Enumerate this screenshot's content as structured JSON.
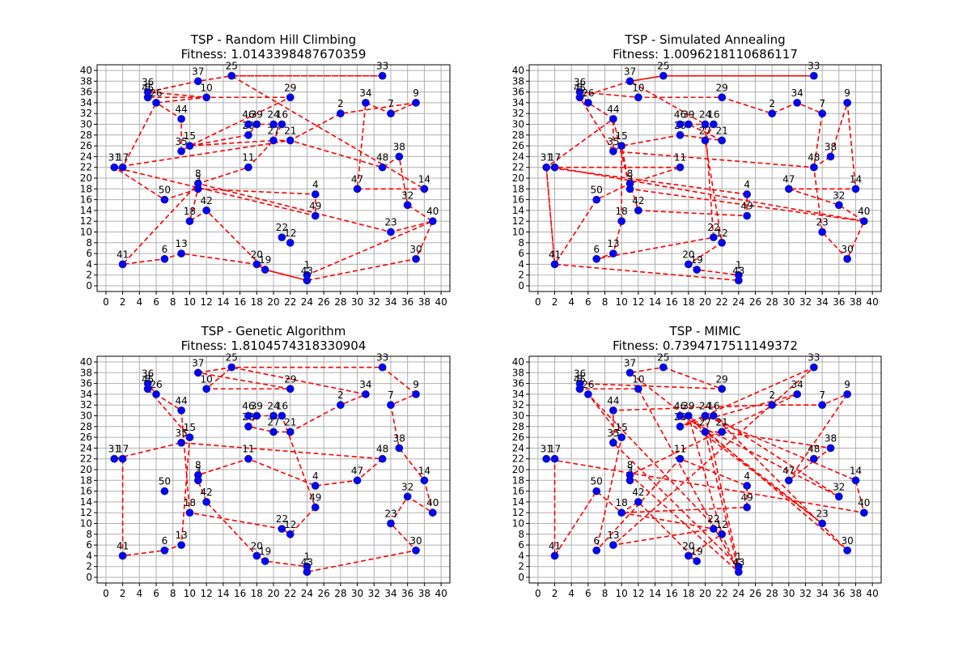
{
  "figure": {
    "colors": {
      "route": "#ff0000",
      "point_fill": "#0000ff",
      "point_edge": "#1f2a7a",
      "grid": "#b0b0b0",
      "axes": "#000000"
    }
  },
  "chart_data": [
    {
      "type": "scatter",
      "title": "TSP - Random Hill Climbing",
      "subtitle": "Fitness: 1.0143398487670359",
      "xlim": [
        0,
        40
      ],
      "ylim": [
        0,
        40
      ],
      "xticks": [
        0,
        2,
        4,
        6,
        8,
        10,
        12,
        14,
        16,
        18,
        20,
        22,
        24,
        26,
        28,
        30,
        32,
        34,
        36,
        38,
        40
      ],
      "yticks": [
        0,
        2,
        4,
        6,
        8,
        10,
        12,
        14,
        16,
        18,
        20,
        22,
        24,
        26,
        28,
        30,
        32,
        34,
        36,
        38,
        40
      ],
      "grid": true,
      "route": [
        33,
        25,
        37,
        36,
        26,
        44,
        35,
        15,
        28,
        39,
        46,
        24,
        16,
        27,
        21,
        48,
        38,
        32,
        40,
        23,
        8,
        3,
        50,
        31,
        17,
        26,
        10,
        36,
        45,
        29,
        15,
        27,
        11,
        8,
        41,
        6,
        13,
        20,
        19,
        43,
        1,
        40,
        30,
        43,
        19,
        42,
        18,
        3,
        4,
        49,
        31,
        21,
        2,
        9,
        7,
        34,
        47,
        14,
        25,
        33
      ]
    },
    {
      "type": "scatter",
      "title": "TSP - Simulated Annealing",
      "subtitle": "Fitness: 1.0096218110686117",
      "xlim": [
        0,
        40
      ],
      "ylim": [
        0,
        40
      ],
      "xticks": [
        0,
        2,
        4,
        6,
        8,
        10,
        12,
        14,
        16,
        18,
        20,
        22,
        24,
        26,
        28,
        30,
        32,
        34,
        36,
        38,
        40
      ],
      "yticks": [
        0,
        2,
        4,
        6,
        8,
        10,
        12,
        14,
        16,
        18,
        20,
        22,
        24,
        26,
        28,
        30,
        32,
        34,
        36,
        38,
        40
      ],
      "grid": true,
      "route": [
        33,
        25,
        37,
        45,
        36,
        10,
        29,
        2,
        34,
        7,
        48,
        38,
        9,
        14,
        47,
        32,
        40,
        30,
        23,
        48,
        35,
        15,
        28,
        21,
        39,
        46,
        16,
        27,
        12,
        20,
        19,
        1,
        43,
        41,
        31,
        17,
        11,
        8,
        3,
        44,
        35,
        5,
        36,
        26,
        44,
        31,
        4,
        49,
        42,
        8,
        50,
        41,
        31,
        17,
        40,
        3,
        15,
        18,
        13,
        6,
        22,
        24,
        37,
        25,
        33
      ]
    },
    {
      "type": "scatter",
      "title": "TSP - Genetic Algorithm",
      "subtitle": "Fitness: 1.8104574318330904",
      "xlim": [
        0,
        40
      ],
      "ylim": [
        0,
        40
      ],
      "xticks": [
        0,
        2,
        4,
        6,
        8,
        10,
        12,
        14,
        16,
        18,
        20,
        22,
        24,
        26,
        28,
        30,
        32,
        34,
        36,
        38,
        40
      ],
      "yticks": [
        0,
        2,
        4,
        6,
        8,
        10,
        12,
        14,
        16,
        18,
        20,
        22,
        24,
        26,
        28,
        30,
        32,
        34,
        36,
        38,
        40
      ],
      "grid": true,
      "route": [
        37,
        25,
        33,
        9,
        7,
        38,
        14,
        40,
        32,
        23,
        30,
        43,
        1,
        19,
        20,
        42,
        3,
        8,
        11,
        4,
        47,
        48,
        35,
        31,
        17,
        41,
        6,
        13,
        15,
        45,
        36,
        26,
        44,
        18,
        22,
        12,
        49,
        16,
        24,
        46,
        39,
        28,
        27,
        21,
        2,
        34,
        25,
        10,
        29,
        37
      ]
    },
    {
      "type": "scatter",
      "title": "TSP - MIMIC",
      "subtitle": "Fitness: 0.7394717511149372",
      "xlim": [
        0,
        40
      ],
      "ylim": [
        0,
        40
      ],
      "xticks": [
        0,
        2,
        4,
        6,
        8,
        10,
        12,
        14,
        16,
        18,
        20,
        22,
        24,
        26,
        28,
        30,
        32,
        34,
        36,
        38,
        40
      ],
      "yticks": [
        0,
        2,
        4,
        6,
        8,
        10,
        12,
        14,
        16,
        18,
        20,
        22,
        24,
        26,
        28,
        30,
        32,
        34,
        36,
        38,
        40
      ],
      "grid": true,
      "route": [
        25,
        29,
        36,
        45,
        10,
        43,
        27,
        21,
        38,
        47,
        9,
        7,
        2,
        44,
        35,
        1,
        24,
        14,
        40,
        31,
        17,
        41,
        50,
        18,
        42,
        19,
        20,
        12,
        26,
        15,
        6,
        11,
        4,
        49,
        18,
        22,
        13,
        33,
        28,
        34,
        8,
        43,
        12,
        39,
        30,
        16,
        32,
        46,
        23,
        37,
        25
      ]
    }
  ],
  "cities": [
    {
      "id": 1,
      "label": "1",
      "x": 24,
      "y": 2
    },
    {
      "id": 2,
      "label": "2",
      "x": 28,
      "y": 32
    },
    {
      "id": 3,
      "label": "3",
      "x": 11,
      "y": 18
    },
    {
      "id": 4,
      "label": "4",
      "x": 25,
      "y": 17
    },
    {
      "id": 5,
      "label": "5",
      "x": 5,
      "y": 35
    },
    {
      "id": 6,
      "label": "6",
      "x": 7,
      "y": 5
    },
    {
      "id": 7,
      "label": "7",
      "x": 34,
      "y": 32
    },
    {
      "id": 8,
      "label": "8",
      "x": 11,
      "y": 19
    },
    {
      "id": 9,
      "label": "9",
      "x": 37,
      "y": 34
    },
    {
      "id": 10,
      "label": "10",
      "x": 12,
      "y": 35
    },
    {
      "id": 11,
      "label": "11",
      "x": 17,
      "y": 22
    },
    {
      "id": 12,
      "label": "12",
      "x": 22,
      "y": 8
    },
    {
      "id": 13,
      "label": "13",
      "x": 9,
      "y": 6
    },
    {
      "id": 14,
      "label": "14",
      "x": 38,
      "y": 18
    },
    {
      "id": 15,
      "label": "15",
      "x": 10,
      "y": 26
    },
    {
      "id": 16,
      "label": "16",
      "x": 21,
      "y": 30
    },
    {
      "id": 17,
      "label": "17",
      "x": 2,
      "y": 22
    },
    {
      "id": 18,
      "label": "18",
      "x": 10,
      "y": 12
    },
    {
      "id": 19,
      "label": "19",
      "x": 19,
      "y": 3
    },
    {
      "id": 20,
      "label": "20",
      "x": 18,
      "y": 4
    },
    {
      "id": 21,
      "label": "21",
      "x": 22,
      "y": 27
    },
    {
      "id": 22,
      "label": "22",
      "x": 21,
      "y": 9
    },
    {
      "id": 23,
      "label": "23",
      "x": 34,
      "y": 10
    },
    {
      "id": 24,
      "label": "24",
      "x": 20,
      "y": 30
    },
    {
      "id": 25,
      "label": "25",
      "x": 15,
      "y": 39
    },
    {
      "id": 26,
      "label": "26",
      "x": 6,
      "y": 34
    },
    {
      "id": 27,
      "label": "27",
      "x": 20,
      "y": 27
    },
    {
      "id": 28,
      "label": "28",
      "x": 17,
      "y": 28
    },
    {
      "id": 29,
      "label": "29",
      "x": 22,
      "y": 35
    },
    {
      "id": 30,
      "label": "30",
      "x": 37,
      "y": 5
    },
    {
      "id": 31,
      "label": "31",
      "x": 1,
      "y": 22
    },
    {
      "id": 32,
      "label": "32",
      "x": 36,
      "y": 15
    },
    {
      "id": 33,
      "label": "33",
      "x": 33,
      "y": 39
    },
    {
      "id": 34,
      "label": "34",
      "x": 31,
      "y": 34
    },
    {
      "id": 35,
      "label": "35",
      "x": 9,
      "y": 25
    },
    {
      "id": 36,
      "label": "36",
      "x": 5,
      "y": 36
    },
    {
      "id": 37,
      "label": "37",
      "x": 11,
      "y": 38
    },
    {
      "id": 38,
      "label": "38",
      "x": 35,
      "y": 24
    },
    {
      "id": 39,
      "label": "39",
      "x": 18,
      "y": 30
    },
    {
      "id": 40,
      "label": "40",
      "x": 39,
      "y": 12
    },
    {
      "id": 41,
      "label": "41",
      "x": 2,
      "y": 4
    },
    {
      "id": 42,
      "label": "42",
      "x": 12,
      "y": 14
    },
    {
      "id": 43,
      "label": "43",
      "x": 24,
      "y": 1
    },
    {
      "id": 44,
      "label": "44",
      "x": 9,
      "y": 31
    },
    {
      "id": 45,
      "label": "45",
      "x": 5,
      "y": 35
    },
    {
      "id": 46,
      "label": "46",
      "x": 17,
      "y": 30
    },
    {
      "id": 47,
      "label": "47",
      "x": 30,
      "y": 18
    },
    {
      "id": 48,
      "label": "48",
      "x": 33,
      "y": 22
    },
    {
      "id": 49,
      "label": "49",
      "x": 25,
      "y": 13
    },
    {
      "id": 50,
      "label": "50",
      "x": 7,
      "y": 16
    }
  ]
}
